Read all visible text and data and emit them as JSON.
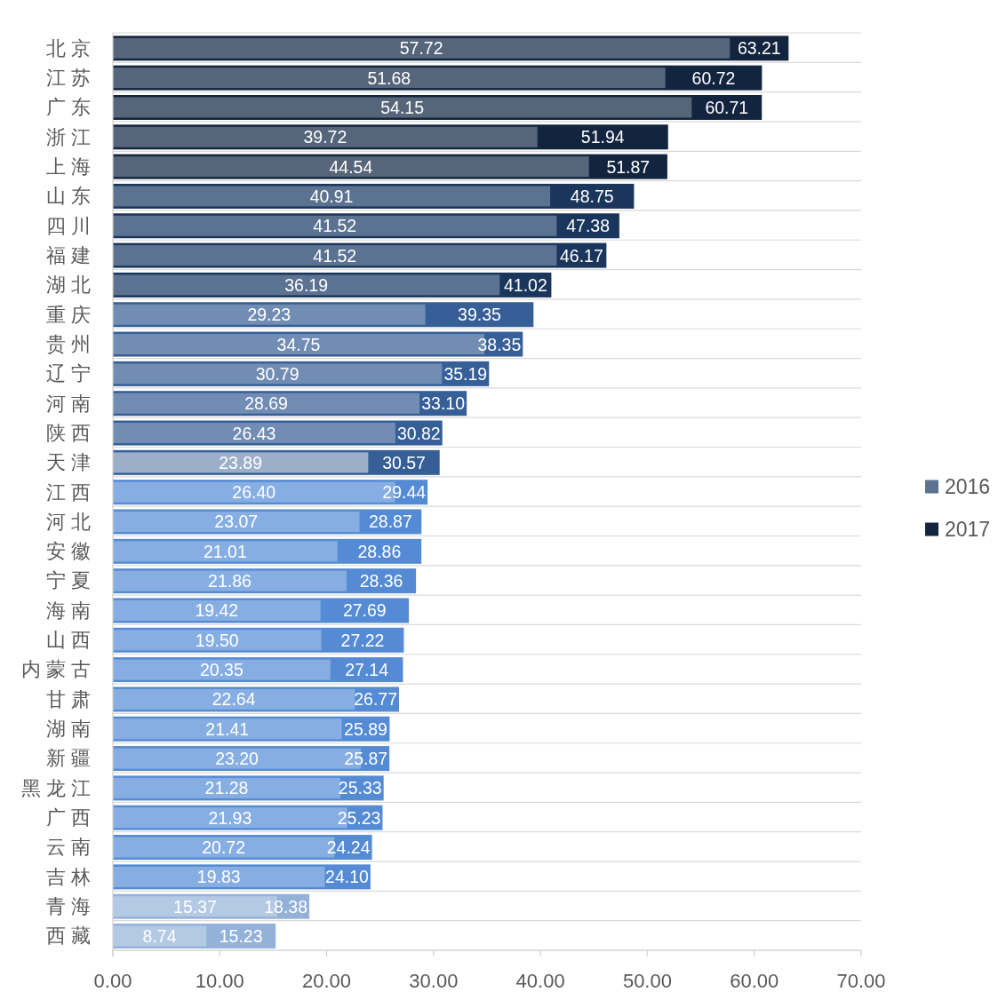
{
  "chart_data": {
    "type": "bar",
    "orientation": "horizontal",
    "categories": [
      "北京",
      "江苏",
      "广东",
      "浙江",
      "上海",
      "山东",
      "四川",
      "福建",
      "湖北",
      "重庆",
      "贵州",
      "辽宁",
      "河南",
      "陕西",
      "天津",
      "江西",
      "河北",
      "安徽",
      "宁夏",
      "海南",
      "山西",
      "内蒙古",
      "甘肃",
      "湖南",
      "新疆",
      "黑龙江",
      "广西",
      "云南",
      "吉林",
      "青海",
      "西藏"
    ],
    "series": [
      {
        "name": "2016",
        "color": "#5b7290",
        "colors": [
          "#56657a",
          "#56657a",
          "#56657a",
          "#56657a",
          "#56657a",
          "#5b7290",
          "#5b7290",
          "#5b7290",
          "#5b7290",
          "#728db3",
          "#728db3",
          "#728db3",
          "#728db3",
          "#728db3",
          "#9bafc8",
          "#87aee2",
          "#87aee2",
          "#87aee2",
          "#87aee2",
          "#87aee2",
          "#87aee2",
          "#87aee2",
          "#87aee2",
          "#87aee2",
          "#87aee2",
          "#87aee2",
          "#87aee2",
          "#87aee2",
          "#87aee2",
          "#b4c9e3",
          "#b4c9e3"
        ],
        "values": [
          57.72,
          51.68,
          54.15,
          39.72,
          44.54,
          40.91,
          41.52,
          41.52,
          36.19,
          29.23,
          34.75,
          30.79,
          28.69,
          26.43,
          23.89,
          26.4,
          23.07,
          21.01,
          21.86,
          19.42,
          19.5,
          20.35,
          22.64,
          21.41,
          23.2,
          21.28,
          21.93,
          20.72,
          19.83,
          15.37,
          8.74
        ],
        "value_labels": [
          "57.72",
          "51.68",
          "54.15",
          "39.72",
          "44.54",
          "40.91",
          "41.52",
          "41.52",
          "36.19",
          "29.23",
          "34.75",
          "30.79",
          "28.69",
          "26.43",
          "23.89",
          "26.40",
          "23.07",
          "21.01",
          "21.86",
          "19.42",
          "19.50",
          "20.35",
          "22.64",
          "21.41",
          "23.20",
          "21.28",
          "21.93",
          "20.72",
          "19.83",
          "15.37",
          "8.74"
        ]
      },
      {
        "name": "2017",
        "color": "#13243f",
        "colors": [
          "#13243f",
          "#13243f",
          "#13243f",
          "#13243f",
          "#13243f",
          "#1b365d",
          "#1b365d",
          "#1b365d",
          "#1b365d",
          "#355f96",
          "#355f96",
          "#355f96",
          "#355f96",
          "#355f96",
          "#355f96",
          "#548bd4",
          "#548bd4",
          "#548bd4",
          "#548bd4",
          "#548bd4",
          "#548bd4",
          "#548bd4",
          "#548bd4",
          "#548bd4",
          "#548bd4",
          "#548bd4",
          "#548bd4",
          "#548bd4",
          "#548bd4",
          "#94b1d8",
          "#94b1d8"
        ],
        "values": [
          63.21,
          60.72,
          60.71,
          51.94,
          51.87,
          48.75,
          47.38,
          46.17,
          41.02,
          39.35,
          38.35,
          35.19,
          33.1,
          30.82,
          30.57,
          29.44,
          28.87,
          28.86,
          28.36,
          27.69,
          27.22,
          27.14,
          26.77,
          25.89,
          25.87,
          25.33,
          25.23,
          24.24,
          24.1,
          18.38,
          15.23
        ],
        "value_labels": [
          "63.21",
          "60.72",
          "60.71",
          "51.94",
          "51.87",
          "48.75",
          "47.38",
          "46.17",
          "41.02",
          "39.35",
          "38.35",
          "35.19",
          "33.10",
          "30.82",
          "30.57",
          "29.44",
          "28.87",
          "28.86",
          "28.36",
          "27.69",
          "27.22",
          "27.14",
          "26.77",
          "25.89",
          "25.87",
          "25.33",
          "25.23",
          "24.24",
          "24.10",
          "18.38",
          "15.23"
        ]
      }
    ],
    "xlim": [
      0,
      70
    ],
    "xticks": [
      {
        "value": 0,
        "label": "0.00"
      },
      {
        "value": 10,
        "label": "10.00"
      },
      {
        "value": 20,
        "label": "20.00"
      },
      {
        "value": 30,
        "label": "30.00"
      },
      {
        "value": 40,
        "label": "40.00"
      },
      {
        "value": 50,
        "label": "50.00"
      },
      {
        "value": 60,
        "label": "60.00"
      },
      {
        "value": 70,
        "label": "70.00"
      }
    ],
    "grid": "y",
    "legend": "right"
  }
}
